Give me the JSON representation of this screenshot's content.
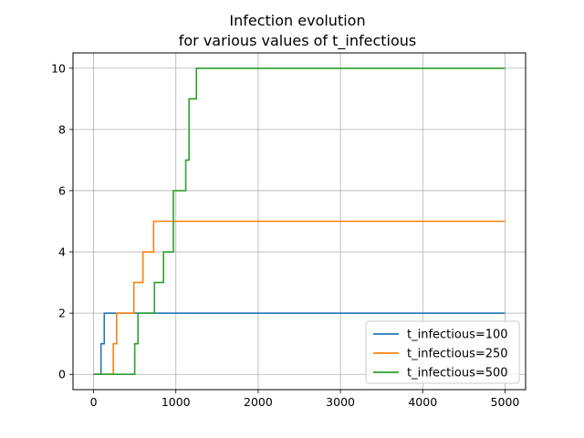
{
  "chart_data": {
    "type": "line",
    "title_line1": "Infection evolution",
    "title_line2": "for various values of t_infectious",
    "xlabel": "",
    "ylabel": "",
    "xlim": [
      -250,
      5250
    ],
    "ylim": [
      -0.5,
      10.5
    ],
    "xticks": [
      0,
      1000,
      2000,
      3000,
      4000,
      5000
    ],
    "yticks": [
      0,
      2,
      4,
      6,
      8,
      10
    ],
    "grid": true,
    "legend_position": "lower-right",
    "step": true,
    "series": [
      {
        "name": "t_infectious=100",
        "color": "#1f77b4",
        "points": [
          [
            0,
            0
          ],
          [
            90,
            0
          ],
          [
            90,
            1
          ],
          [
            130,
            1
          ],
          [
            130,
            2
          ],
          [
            5000,
            2
          ]
        ]
      },
      {
        "name": "t_infectious=250",
        "color": "#ff7f0e",
        "points": [
          [
            0,
            0
          ],
          [
            240,
            0
          ],
          [
            240,
            1
          ],
          [
            280,
            1
          ],
          [
            280,
            2
          ],
          [
            490,
            2
          ],
          [
            490,
            3
          ],
          [
            600,
            3
          ],
          [
            600,
            4
          ],
          [
            730,
            4
          ],
          [
            730,
            5
          ],
          [
            5000,
            5
          ]
        ]
      },
      {
        "name": "t_infectious=500",
        "color": "#2ca02c",
        "points": [
          [
            0,
            0
          ],
          [
            500,
            0
          ],
          [
            500,
            1
          ],
          [
            540,
            1
          ],
          [
            540,
            2
          ],
          [
            740,
            2
          ],
          [
            740,
            3
          ],
          [
            850,
            3
          ],
          [
            850,
            4
          ],
          [
            970,
            4
          ],
          [
            970,
            6
          ],
          [
            1120,
            6
          ],
          [
            1120,
            7
          ],
          [
            1160,
            7
          ],
          [
            1160,
            9
          ],
          [
            1250,
            9
          ],
          [
            1250,
            10
          ],
          [
            5000,
            10
          ]
        ]
      }
    ]
  }
}
